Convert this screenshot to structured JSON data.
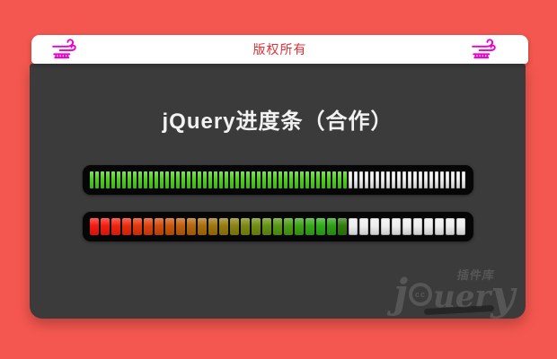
{
  "page": {
    "background": "#f4574f"
  },
  "header": {
    "title": "版权所有",
    "title_color": "#e03338",
    "icon_color": "#ee00cc"
  },
  "panel": {
    "background": "#3b3b3b",
    "title": "jQuery进度条（合作）",
    "title_color": "#f2f2f2"
  },
  "progress_bars": [
    {
      "name": "thin-green-bar",
      "style": "thin",
      "total_segments": 70,
      "filled_segments": 48,
      "filled_color": "#4ed01f",
      "empty_color": "#f2f2f2",
      "track_color": "#060606"
    },
    {
      "name": "gradient-block-bar",
      "style": "block",
      "total_segments": 35,
      "filled_segments": 24,
      "empty_color": "#efefef",
      "track_color": "#060606",
      "colors": [
        "#f41a12",
        "#f21d11",
        "#ef2310",
        "#e92c0f",
        "#e2370e",
        "#da420d",
        "#d14d0c",
        "#c8560c",
        "#be5f0d",
        "#b4670e",
        "#aa6e0f",
        "#9f7510",
        "#947c11",
        "#898212",
        "#7d8813",
        "#718d14",
        "#659215",
        "#589816",
        "#4b9d17",
        "#3ea218",
        "#35a71a",
        "#2fab1c",
        "#2f9e18",
        "#327c10"
      ]
    }
  ],
  "watermark": {
    "part1": "j",
    "face": "cc",
    "part2": "uer",
    "part3": "y",
    "label": "插件库"
  }
}
